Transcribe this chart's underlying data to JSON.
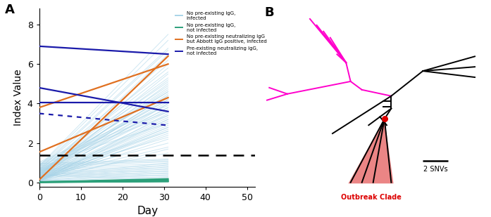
{
  "panel_A": {
    "title": "A",
    "xlabel": "Day",
    "ylabel": "Index Value",
    "xlim": [
      0,
      52
    ],
    "ylim": [
      -0.2,
      8.8
    ],
    "xticks": [
      0,
      10,
      20,
      30,
      40,
      50
    ],
    "yticks": [
      0,
      2,
      4,
      6,
      8
    ],
    "dashed_line_y": 1.4,
    "light_blue_color": "#a8d4e8",
    "green_color": "#2ca07a",
    "orange_color": "#e07020",
    "dark_blue_color": "#1a1aaa",
    "legend_labels": [
      "No pre-existing IgG,\ninfected",
      "No pre-existing IgG,\nnot infected",
      "No pre-existing neutralizing IgG\nbut Abbott IgG positive, infected",
      "Pre-existing neutralizing IgG,\nnot infected"
    ],
    "light_blue_day0": [
      0.05,
      0.1,
      0.15,
      0.08,
      0.12,
      0.2,
      0.25,
      0.3,
      0.35,
      0.4,
      0.45,
      0.5,
      0.55,
      0.6,
      0.65,
      0.7,
      0.75,
      0.8,
      0.85,
      0.9,
      0.95,
      1.0,
      1.05,
      0.05,
      0.1,
      0.15,
      0.2,
      0.25,
      0.3,
      0.35,
      0.4,
      0.45,
      0.5,
      0.55,
      0.6,
      0.65,
      0.02,
      0.03,
      0.07,
      0.09,
      0.11,
      0.13,
      0.18,
      0.22,
      0.27,
      0.32,
      0.37,
      0.42,
      0.47,
      0.52,
      0.57,
      0.62,
      0.67,
      0.72,
      0.77,
      0.82,
      0.87,
      0.92,
      0.97,
      0.1,
      0.14,
      0.16,
      0.19,
      0.21,
      0.24,
      0.28,
      0.33,
      0.38,
      0.43,
      0.48,
      0.53,
      0.58,
      0.63,
      0.68,
      0.23,
      0.26,
      0.31,
      0.36,
      0.41,
      0.06
    ],
    "light_blue_day30": [
      3.5,
      4.0,
      4.5,
      2.8,
      3.2,
      5.0,
      5.5,
      6.0,
      6.5,
      4.8,
      5.2,
      3.8,
      4.2,
      4.6,
      5.8,
      6.2,
      6.8,
      7.2,
      7.5,
      3.0,
      3.4,
      3.6,
      3.9,
      2.5,
      2.7,
      2.9,
      3.1,
      3.3,
      3.7,
      4.1,
      4.3,
      4.4,
      4.7,
      4.9,
      5.1,
      5.3,
      0.1,
      0.2,
      0.3,
      0.4,
      0.5,
      0.6,
      0.7,
      0.8,
      0.9,
      1.0,
      0.15,
      0.25,
      0.35,
      0.45,
      0.55,
      0.65,
      0.75,
      0.85,
      0.95,
      1.05,
      1.1,
      1.15,
      1.2,
      2.2,
      2.4,
      2.6,
      2.8,
      3.0,
      3.2,
      3.4,
      3.6,
      3.8,
      4.0,
      4.2,
      4.4,
      4.6,
      5.6,
      6.7,
      1.5,
      1.8,
      2.0,
      2.3,
      2.6,
      1.7
    ],
    "green_lines_day0": [
      0.02,
      0.03,
      0.01,
      0.04,
      0.02,
      0.05,
      0.03,
      0.04,
      0.01
    ],
    "green_lines_day30": [
      0.05,
      0.08,
      0.12,
      0.15,
      0.18,
      0.1,
      0.07,
      0.2,
      0.06
    ],
    "orange_lines": [
      [
        0.15,
        6.4
      ],
      [
        3.8,
        6.0
      ],
      [
        1.55,
        4.3
      ]
    ],
    "dark_blue_lines": [
      {
        "y0": 6.9,
        "y1": 6.5,
        "style": "solid"
      },
      {
        "y0": 4.8,
        "y1": 3.6,
        "style": "solid"
      },
      {
        "y0": 4.05,
        "y1": 4.05,
        "style": "solid"
      },
      {
        "y0": 3.5,
        "y1": 2.9,
        "style": "dotted"
      }
    ]
  },
  "panel_B": {
    "title": "B",
    "scale_label": "2 SNVs",
    "outbreak_label": "Outbreak Clade",
    "magenta_color": "#ff00cc",
    "black_color": "#000000",
    "red_color": "#dd0000",
    "red_fill": "#e87070"
  }
}
